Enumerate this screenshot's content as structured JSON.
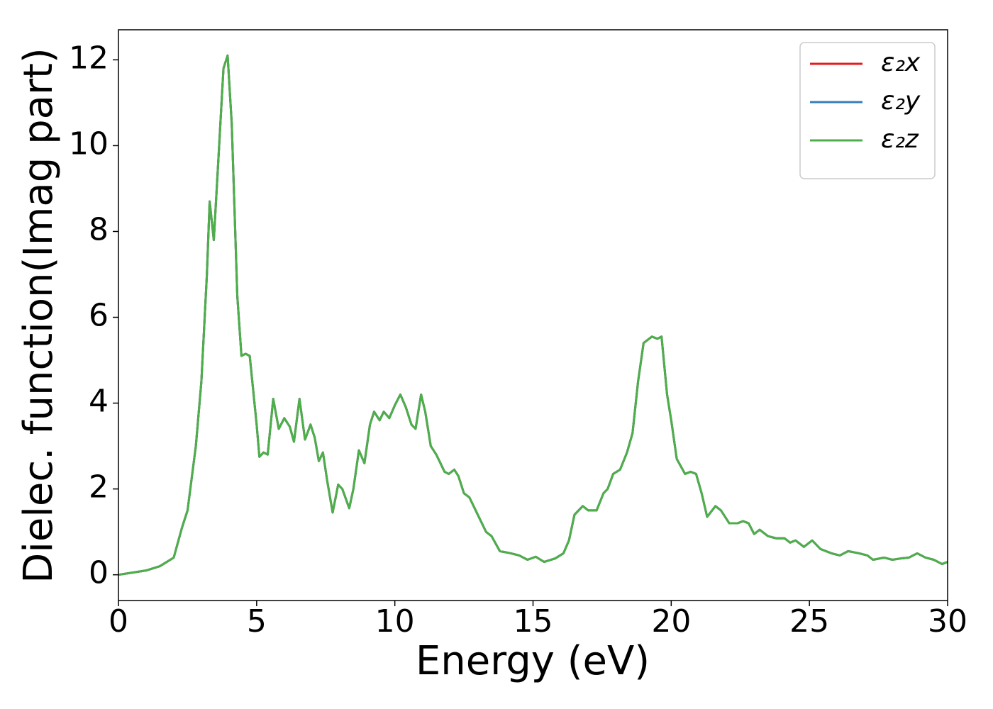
{
  "chart_data": {
    "type": "line",
    "xlabel": "Energy (eV)",
    "ylabel": "Dielec. function(Imag part)",
    "x": [
      0,
      1,
      1.5,
      2,
      2.3,
      2.5,
      2.8,
      3,
      3.2,
      3.3,
      3.45,
      3.6,
      3.8,
      3.95,
      4.1,
      4.3,
      4.45,
      4.6,
      4.75,
      5,
      5.1,
      5.25,
      5.4,
      5.6,
      5.8,
      6,
      6.2,
      6.35,
      6.55,
      6.75,
      6.95,
      7.1,
      7.25,
      7.4,
      7.55,
      7.75,
      7.95,
      8.1,
      8.35,
      8.5,
      8.7,
      8.9,
      9.1,
      9.25,
      9.45,
      9.6,
      9.8,
      10,
      10.2,
      10.4,
      10.6,
      10.75,
      10.95,
      11.1,
      11.3,
      11.5,
      11.8,
      11.95,
      12.15,
      12.3,
      12.5,
      12.7,
      13,
      13.3,
      13.5,
      13.8,
      14.2,
      14.5,
      14.8,
      15.1,
      15.4,
      15.8,
      16.1,
      16.3,
      16.5,
      16.8,
      17,
      17.3,
      17.55,
      17.7,
      17.9,
      18.15,
      18.4,
      18.6,
      18.8,
      19,
      19.3,
      19.5,
      19.65,
      19.85,
      20,
      20.2,
      20.5,
      20.7,
      20.9,
      21.1,
      21.3,
      21.6,
      21.8,
      22.1,
      22.4,
      22.6,
      22.8,
      23,
      23.2,
      23.5,
      23.8,
      24.1,
      24.3,
      24.5,
      24.8,
      25.1,
      25.4,
      25.8,
      26.1,
      26.4,
      26.8,
      27.1,
      27.3,
      27.7,
      28,
      28.3,
      28.6,
      28.9,
      29.2,
      29.5,
      29.8,
      30
    ],
    "series": [
      {
        "name": "ε₂x",
        "color": "#e41a1c",
        "values": [
          0,
          0.1,
          0.2,
          0.4,
          1.1,
          1.5,
          3,
          4.5,
          7,
          8.7,
          7.8,
          9.5,
          11.8,
          12.1,
          10.5,
          6.5,
          5.1,
          5.15,
          5.1,
          3.5,
          2.75,
          2.85,
          2.8,
          4.1,
          3.4,
          3.65,
          3.45,
          3.1,
          4.1,
          3.15,
          3.5,
          3.2,
          2.65,
          2.85,
          2.2,
          1.45,
          2.1,
          2,
          1.55,
          2,
          2.9,
          2.6,
          3.5,
          3.8,
          3.6,
          3.8,
          3.65,
          3.95,
          4.2,
          3.9,
          3.5,
          3.4,
          4.2,
          3.8,
          3,
          2.8,
          2.4,
          2.35,
          2.45,
          2.3,
          1.9,
          1.8,
          1.4,
          1,
          0.9,
          0.55,
          0.5,
          0.45,
          0.35,
          0.42,
          0.3,
          0.38,
          0.5,
          0.8,
          1.4,
          1.6,
          1.5,
          1.5,
          1.9,
          2,
          2.35,
          2.45,
          2.85,
          3.3,
          4.5,
          5.4,
          5.55,
          5.5,
          5.55,
          4.2,
          3.6,
          2.7,
          2.35,
          2.4,
          2.35,
          1.9,
          1.35,
          1.6,
          1.5,
          1.2,
          1.2,
          1.25,
          1.2,
          0.95,
          1.05,
          0.9,
          0.85,
          0.85,
          0.75,
          0.8,
          0.65,
          0.8,
          0.6,
          0.5,
          0.45,
          0.55,
          0.5,
          0.45,
          0.35,
          0.4,
          0.35,
          0.38,
          0.4,
          0.5,
          0.4,
          0.35,
          0.25,
          0.3
        ]
      },
      {
        "name": "ε₂y",
        "color": "#377eb8",
        "values": [
          0,
          0.1,
          0.2,
          0.4,
          1.1,
          1.5,
          3,
          4.5,
          7,
          8.7,
          7.8,
          9.5,
          11.8,
          12.1,
          10.5,
          6.5,
          5.1,
          5.15,
          5.1,
          3.5,
          2.75,
          2.85,
          2.8,
          4.1,
          3.4,
          3.65,
          3.45,
          3.1,
          4.1,
          3.15,
          3.5,
          3.2,
          2.65,
          2.85,
          2.2,
          1.45,
          2.1,
          2,
          1.55,
          2,
          2.9,
          2.6,
          3.5,
          3.8,
          3.6,
          3.8,
          3.65,
          3.95,
          4.2,
          3.9,
          3.5,
          3.4,
          4.2,
          3.8,
          3,
          2.8,
          2.4,
          2.35,
          2.45,
          2.3,
          1.9,
          1.8,
          1.4,
          1,
          0.9,
          0.55,
          0.5,
          0.45,
          0.35,
          0.42,
          0.3,
          0.38,
          0.5,
          0.8,
          1.4,
          1.6,
          1.5,
          1.5,
          1.9,
          2,
          2.35,
          2.45,
          2.85,
          3.3,
          4.5,
          5.4,
          5.55,
          5.5,
          5.55,
          4.2,
          3.6,
          2.7,
          2.35,
          2.4,
          2.35,
          1.9,
          1.35,
          1.6,
          1.5,
          1.2,
          1.2,
          1.25,
          1.2,
          0.95,
          1.05,
          0.9,
          0.85,
          0.85,
          0.75,
          0.8,
          0.65,
          0.8,
          0.6,
          0.5,
          0.45,
          0.55,
          0.5,
          0.45,
          0.35,
          0.4,
          0.35,
          0.38,
          0.4,
          0.5,
          0.4,
          0.35,
          0.25,
          0.3
        ]
      },
      {
        "name": "ε₂z",
        "color": "#4daf4a",
        "values": [
          0,
          0.1,
          0.2,
          0.4,
          1.1,
          1.5,
          3,
          4.5,
          7,
          8.7,
          7.8,
          9.5,
          11.8,
          12.1,
          10.5,
          6.5,
          5.1,
          5.15,
          5.1,
          3.5,
          2.75,
          2.85,
          2.8,
          4.1,
          3.4,
          3.65,
          3.45,
          3.1,
          4.1,
          3.15,
          3.5,
          3.2,
          2.65,
          2.85,
          2.2,
          1.45,
          2.1,
          2,
          1.55,
          2,
          2.9,
          2.6,
          3.5,
          3.8,
          3.6,
          3.8,
          3.65,
          3.95,
          4.2,
          3.9,
          3.5,
          3.4,
          4.2,
          3.8,
          3,
          2.8,
          2.4,
          2.35,
          2.45,
          2.3,
          1.9,
          1.8,
          1.4,
          1,
          0.9,
          0.55,
          0.5,
          0.45,
          0.35,
          0.42,
          0.3,
          0.38,
          0.5,
          0.8,
          1.4,
          1.6,
          1.5,
          1.5,
          1.9,
          2,
          2.35,
          2.45,
          2.85,
          3.3,
          4.5,
          5.4,
          5.55,
          5.5,
          5.55,
          4.2,
          3.6,
          2.7,
          2.35,
          2.4,
          2.35,
          1.9,
          1.35,
          1.6,
          1.5,
          1.2,
          1.2,
          1.25,
          1.2,
          0.95,
          1.05,
          0.9,
          0.85,
          0.85,
          0.75,
          0.8,
          0.65,
          0.8,
          0.6,
          0.5,
          0.45,
          0.55,
          0.5,
          0.45,
          0.35,
          0.4,
          0.35,
          0.38,
          0.4,
          0.5,
          0.4,
          0.35,
          0.25,
          0.3
        ]
      }
    ],
    "xlim": [
      0,
      30
    ],
    "xticks": [
      0,
      5,
      10,
      15,
      20,
      25,
      30
    ],
    "ylim": [
      -0.6,
      12.7
    ],
    "yticks": [
      0,
      2,
      4,
      6,
      8,
      10,
      12
    ],
    "grid": false,
    "legend": "upper right"
  }
}
